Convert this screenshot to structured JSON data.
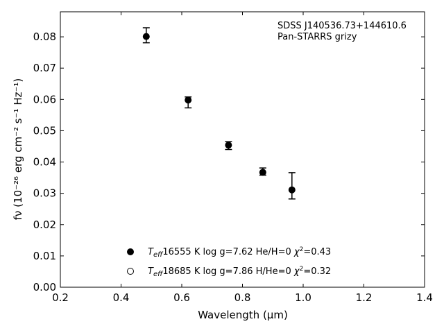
{
  "chart_data": {
    "type": "scatter",
    "title": "",
    "xlabel": "Wavelength (μm)",
    "ylabel": "fν (10⁻²⁶ erg cm⁻² s⁻¹ Hz⁻¹)",
    "xlim": [
      0.2,
      1.4
    ],
    "ylim": [
      0.0,
      0.088
    ],
    "xticks": [
      0.2,
      0.4,
      0.6,
      0.8,
      1.0,
      1.2,
      1.4
    ],
    "xtick_labels": [
      "0.2",
      "0.4",
      "0.6",
      "0.8",
      "1.0",
      "1.2",
      "1.4"
    ],
    "yticks": [
      0.0,
      0.01,
      0.02,
      0.03,
      0.04,
      0.05,
      0.06,
      0.07,
      0.08
    ],
    "ytick_labels": [
      "0.00",
      "0.01",
      "0.02",
      "0.03",
      "0.04",
      "0.05",
      "0.06",
      "0.07",
      "0.08"
    ],
    "grid": false,
    "annotations": [
      "SDSS J140536.73+144610.6",
      "Pan-STARRS grizy"
    ],
    "observed": {
      "x": [
        0.483,
        0.621,
        0.754,
        0.867,
        0.963
      ],
      "y_top": [
        0.0829,
        0.0608,
        0.0465,
        0.0381,
        0.0366
      ],
      "y_bottom": [
        0.0781,
        0.0573,
        0.044,
        0.0358,
        0.0282
      ]
    },
    "series": [
      {
        "marker": "filled-circle",
        "teff_value": "16555 K",
        "rest": "log g=7.62  He/H=0",
        "chi2_value": "=0.43",
        "x": [
          0.483,
          0.621,
          0.754,
          0.867,
          0.963
        ],
        "y": [
          0.0801,
          0.0598,
          0.0454,
          0.0367,
          0.0311
        ]
      },
      {
        "marker": "open-circle",
        "teff_value": "18685 K",
        "rest": "log g=7.86  H/He=0",
        "chi2_value": "=0.32",
        "x": [],
        "y": []
      }
    ],
    "legend": {
      "placement": "lower-center"
    }
  }
}
